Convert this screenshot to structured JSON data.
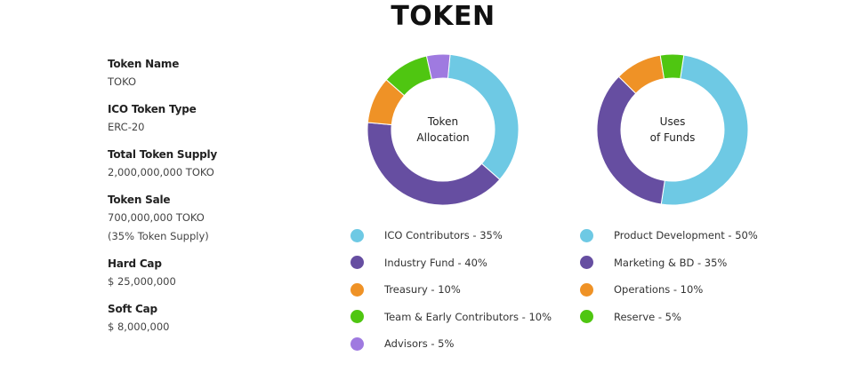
{
  "title": "TOKEN",
  "details": [
    {
      "label": "Token Name",
      "lines": [
        "TOKO"
      ]
    },
    {
      "label": "ICO Token Type",
      "lines": [
        "ERC-20"
      ]
    },
    {
      "label": "Total Token Supply",
      "lines": [
        "2,000,000,000 TOKO"
      ]
    },
    {
      "label": "Token Sale",
      "lines": [
        "700,000,000 TOKO",
        "(35% Token Supply)"
      ]
    },
    {
      "label": "Hard Cap",
      "lines": [
        "$ 25,000,000"
      ]
    },
    {
      "label": "Soft Cap",
      "lines": [
        "$ 8,000,000"
      ]
    }
  ],
  "chart_data": [
    {
      "type": "pie",
      "donut": true,
      "center_label": [
        "Token",
        "Allocation"
      ],
      "slices": [
        {
          "label": "ICO Contributors - 35%",
          "name": "ICO Contributors",
          "value": 35,
          "color": "#6ec9e4"
        },
        {
          "label": "Industry Fund - 40%",
          "name": "Industry Fund",
          "value": 40,
          "color": "#664ea1"
        },
        {
          "label": "Treasury - 10%",
          "name": "Treasury",
          "value": 10,
          "color": "#ef9226"
        },
        {
          "label": "Team & Early Contributors - 10%",
          "name": "Team & Early Contributors",
          "value": 10,
          "color": "#4fc611"
        },
        {
          "label": "Advisors - 5%",
          "name": "Advisors",
          "value": 5,
          "color": "#9f7ae0"
        }
      ]
    },
    {
      "type": "pie",
      "donut": true,
      "center_label": [
        "Uses",
        "of Funds"
      ],
      "slices": [
        {
          "label": "Product Development - 50%",
          "name": "Product Development",
          "value": 50,
          "color": "#6ec9e4"
        },
        {
          "label": "Marketing & BD - 35%",
          "name": "Marketing & BD",
          "value": 35,
          "color": "#664ea1"
        },
        {
          "label": "Operations - 10%",
          "name": "Operations",
          "value": 10,
          "color": "#ef9226"
        },
        {
          "label": "Reserve - 5%",
          "name": "Reserve",
          "value": 5,
          "color": "#4fc611"
        }
      ]
    }
  ]
}
